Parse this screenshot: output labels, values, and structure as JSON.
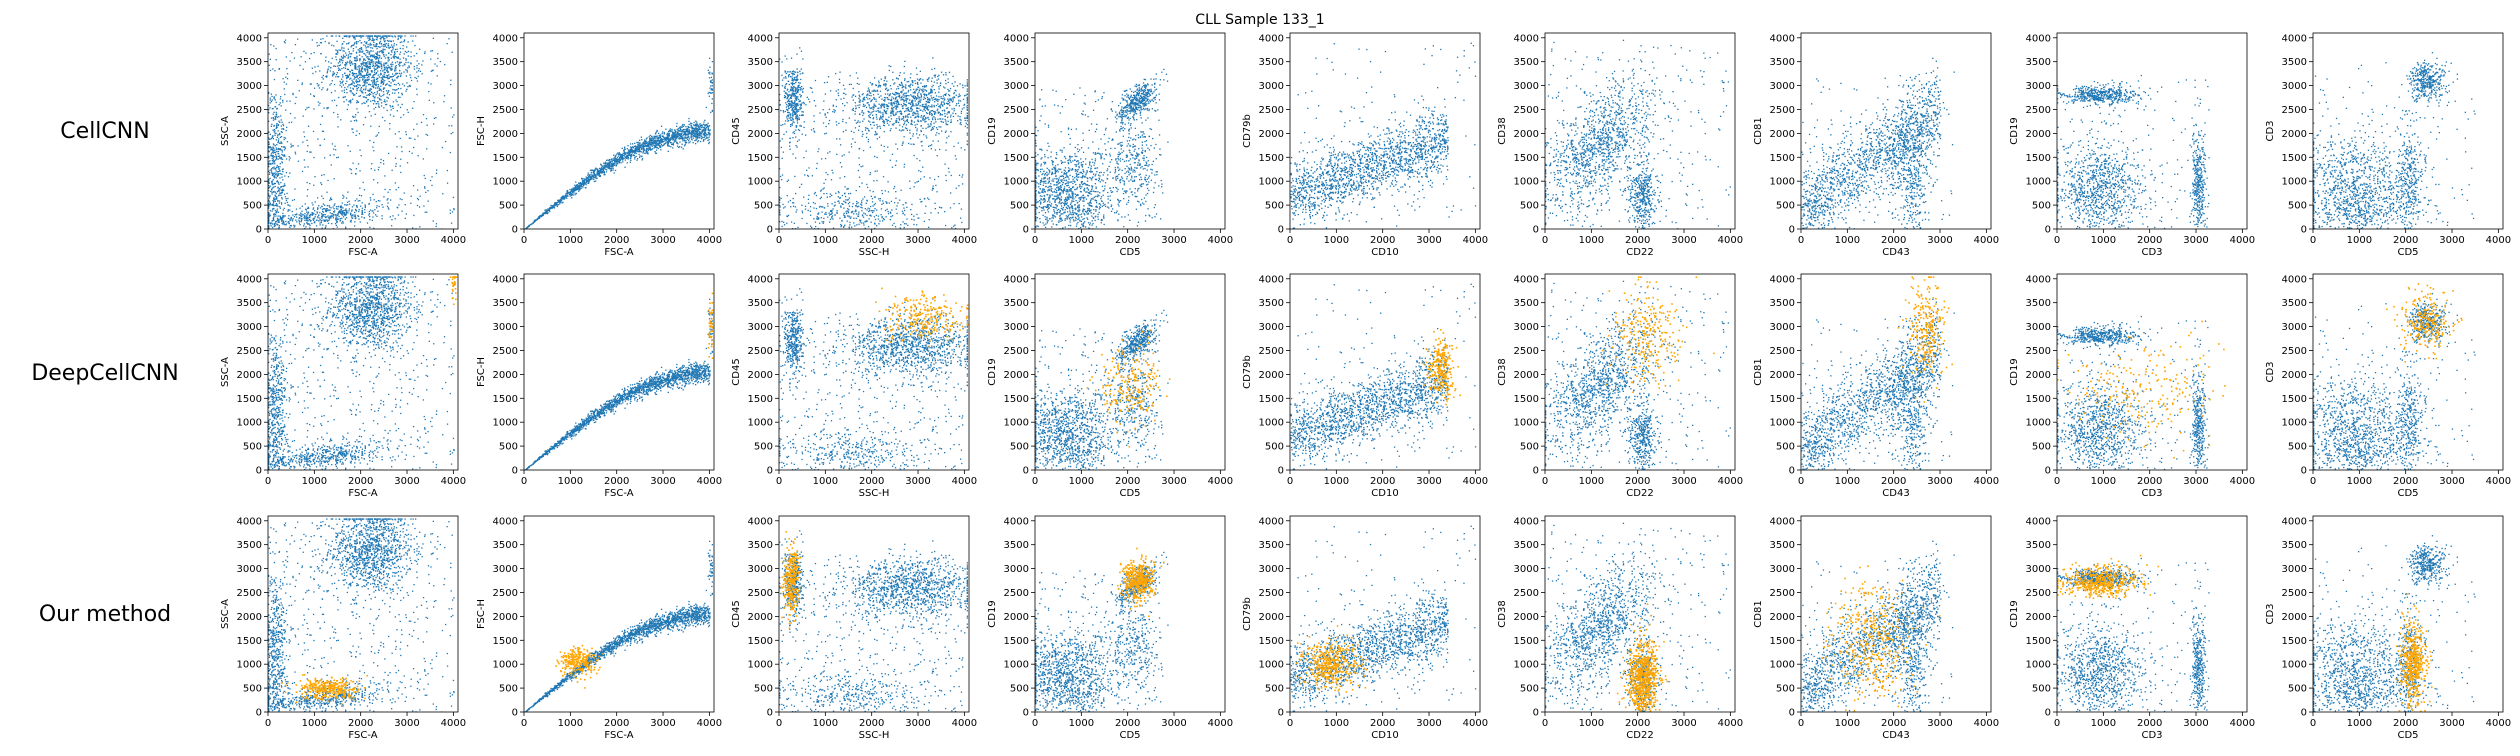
{
  "figure": {
    "title": "CLL Sample 133_1",
    "rows": [
      "CellCNN",
      "DeepCellCNN",
      "Our method"
    ]
  },
  "colors": {
    "population": "#1f77b4",
    "highlight": "#ffa500"
  },
  "chart_data": [
    {
      "type": "scatter",
      "row": "CellCNN",
      "xlabel": "FSC-A",
      "ylabel": "SSC-A",
      "xlim": [
        0,
        4100
      ],
      "ylim": [
        0,
        4100
      ],
      "xticks": [
        0,
        1000,
        2000,
        3000,
        4000
      ],
      "yticks": [
        0,
        500,
        1000,
        1500,
        2000,
        2500,
        3000,
        3500,
        4000
      ],
      "highlight": []
    },
    {
      "type": "scatter",
      "row": "CellCNN",
      "xlabel": "FSC-A",
      "ylabel": "FSC-H",
      "xlim": [
        0,
        4100
      ],
      "ylim": [
        0,
        4100
      ],
      "xticks": [
        0,
        1000,
        2000,
        3000,
        4000
      ],
      "yticks": [
        0,
        500,
        1000,
        1500,
        2000,
        2500,
        3000,
        3500,
        4000
      ],
      "highlight": []
    },
    {
      "type": "scatter",
      "row": "CellCNN",
      "xlabel": "SSC-H",
      "ylabel": "CD45",
      "xlim": [
        0,
        4100
      ],
      "ylim": [
        0,
        4100
      ],
      "xticks": [
        0,
        1000,
        2000,
        3000,
        4000
      ],
      "yticks": [
        0,
        500,
        1000,
        1500,
        2000,
        2500,
        3000,
        3500,
        4000
      ],
      "highlight": []
    },
    {
      "type": "scatter",
      "row": "CellCNN",
      "xlabel": "CD5",
      "ylabel": "CD19",
      "xlim": [
        0,
        4100
      ],
      "ylim": [
        0,
        4100
      ],
      "xticks": [
        0,
        1000,
        2000,
        3000,
        4000
      ],
      "yticks": [
        0,
        500,
        1000,
        1500,
        2000,
        2500,
        3000,
        3500,
        4000
      ],
      "highlight": []
    },
    {
      "type": "scatter",
      "row": "CellCNN",
      "xlabel": "CD10",
      "ylabel": "CD79b",
      "xlim": [
        0,
        4100
      ],
      "ylim": [
        0,
        4100
      ],
      "xticks": [
        0,
        1000,
        2000,
        3000,
        4000
      ],
      "yticks": [
        0,
        500,
        1000,
        1500,
        2000,
        2500,
        3000,
        3500,
        4000
      ],
      "highlight": []
    },
    {
      "type": "scatter",
      "row": "CellCNN",
      "xlabel": "CD22",
      "ylabel": "CD38",
      "xlim": [
        0,
        4100
      ],
      "ylim": [
        0,
        4100
      ],
      "xticks": [
        0,
        1000,
        2000,
        3000,
        4000
      ],
      "yticks": [
        0,
        500,
        1000,
        1500,
        2000,
        2500,
        3000,
        3500,
        4000
      ],
      "highlight": []
    },
    {
      "type": "scatter",
      "row": "CellCNN",
      "xlabel": "CD43",
      "ylabel": "CD81",
      "xlim": [
        0,
        4100
      ],
      "ylim": [
        0,
        4100
      ],
      "xticks": [
        0,
        1000,
        2000,
        3000,
        4000
      ],
      "yticks": [
        0,
        500,
        1000,
        1500,
        2000,
        2500,
        3000,
        3500,
        4000
      ],
      "highlight": []
    },
    {
      "type": "scatter",
      "row": "CellCNN",
      "xlabel": "CD3",
      "ylabel": "CD19",
      "xlim": [
        0,
        4100
      ],
      "ylim": [
        0,
        4100
      ],
      "xticks": [
        0,
        1000,
        2000,
        3000,
        4000
      ],
      "yticks": [
        0,
        500,
        1000,
        1500,
        2000,
        2500,
        3000,
        3500,
        4000
      ],
      "highlight": []
    },
    {
      "type": "scatter",
      "row": "CellCNN",
      "xlabel": "CD5",
      "ylabel": "CD3",
      "xlim": [
        0,
        4100
      ],
      "ylim": [
        0,
        4100
      ],
      "xticks": [
        0,
        1000,
        2000,
        3000,
        4000
      ],
      "yticks": [
        0,
        500,
        1000,
        1500,
        2000,
        2500,
        3000,
        3500,
        4000
      ],
      "highlight": []
    },
    {
      "type": "scatter",
      "row": "DeepCellCNN",
      "xlabel": "FSC-A",
      "ylabel": "SSC-A",
      "xlim": [
        0,
        4100
      ],
      "ylim": [
        0,
        4100
      ],
      "xticks": [
        0,
        1000,
        2000,
        3000,
        4000
      ],
      "yticks": [
        0,
        500,
        1000,
        1500,
        2000,
        2500,
        3000,
        3500,
        4000
      ],
      "highlight": [
        [
          4000,
          4000,
          30,
          200,
          40
        ]
      ]
    },
    {
      "type": "scatter",
      "row": "DeepCellCNN",
      "xlabel": "FSC-A",
      "ylabel": "FSC-H",
      "xlim": [
        0,
        4100
      ],
      "ylim": [
        0,
        4100
      ],
      "xticks": [
        0,
        1000,
        2000,
        3000,
        4000
      ],
      "yticks": [
        0,
        500,
        1000,
        1500,
        2000,
        2500,
        3000,
        3500,
        4000
      ],
      "highlight": [
        [
          4020,
          3000,
          30,
          300,
          40
        ]
      ]
    },
    {
      "type": "scatter",
      "row": "DeepCellCNN",
      "xlabel": "SSC-H",
      "ylabel": "CD45",
      "xlim": [
        0,
        4100
      ],
      "ylim": [
        0,
        4100
      ],
      "xticks": [
        0,
        1000,
        2000,
        3000,
        4000
      ],
      "yticks": [
        0,
        500,
        1000,
        1500,
        2000,
        2500,
        3000,
        3500,
        4000
      ],
      "highlight": [
        [
          3100,
          3200,
          420,
          230,
          260
        ]
      ]
    },
    {
      "type": "scatter",
      "row": "DeepCellCNN",
      "xlabel": "CD5",
      "ylabel": "CD19",
      "xlim": [
        0,
        4100
      ],
      "ylim": [
        0,
        4100
      ],
      "xticks": [
        0,
        1000,
        2000,
        3000,
        4000
      ],
      "yticks": [
        0,
        500,
        1000,
        1500,
        2000,
        2500,
        3000,
        3500,
        4000
      ],
      "highlight": [
        [
          2000,
          1800,
          350,
          450,
          220
        ]
      ]
    },
    {
      "type": "scatter",
      "row": "DeepCellCNN",
      "xlabel": "CD10",
      "ylabel": "CD79b",
      "xlim": [
        0,
        4100
      ],
      "ylim": [
        0,
        4100
      ],
      "xticks": [
        0,
        1000,
        2000,
        3000,
        4000
      ],
      "yticks": [
        0,
        500,
        1000,
        1500,
        2000,
        2500,
        3000,
        3500,
        4000
      ],
      "highlight": [
        [
          3250,
          2150,
          140,
          300,
          260
        ]
      ]
    },
    {
      "type": "scatter",
      "row": "DeepCellCNN",
      "xlabel": "CD22",
      "ylabel": "CD38",
      "xlim": [
        0,
        4100
      ],
      "ylim": [
        0,
        4100
      ],
      "xticks": [
        0,
        1000,
        2000,
        3000,
        4000
      ],
      "yticks": [
        0,
        500,
        1000,
        1500,
        2000,
        2500,
        3000,
        3500,
        4000
      ],
      "highlight": [
        [
          2150,
          2800,
          350,
          550,
          260
        ]
      ]
    },
    {
      "type": "scatter",
      "row": "DeepCellCNN",
      "xlabel": "CD43",
      "ylabel": "CD81",
      "xlim": [
        0,
        4100
      ],
      "ylim": [
        0,
        4100
      ],
      "xticks": [
        0,
        1000,
        2000,
        3000,
        4000
      ],
      "yticks": [
        0,
        500,
        1000,
        1500,
        2000,
        2500,
        3000,
        3500,
        4000
      ],
      "highlight": [
        [
          2700,
          3000,
          200,
          500,
          260
        ]
      ]
    },
    {
      "type": "scatter",
      "row": "DeepCellCNN",
      "xlabel": "CD3",
      "ylabel": "CD19",
      "xlim": [
        0,
        4100
      ],
      "ylim": [
        0,
        4100
      ],
      "xticks": [
        0,
        1000,
        2000,
        3000,
        4000
      ],
      "yticks": [
        0,
        500,
        1000,
        1500,
        2000,
        2500,
        3000,
        3500,
        4000
      ],
      "highlight": [
        [
          1700,
          1700,
          800,
          500,
          220
        ]
      ]
    },
    {
      "type": "scatter",
      "row": "DeepCellCNN",
      "xlabel": "CD5",
      "ylabel": "CD3",
      "xlim": [
        0,
        4100
      ],
      "ylim": [
        0,
        4100
      ],
      "xticks": [
        0,
        1000,
        2000,
        3000,
        4000
      ],
      "yticks": [
        0,
        500,
        1000,
        1500,
        2000,
        2500,
        3000,
        3500,
        4000
      ],
      "highlight": [
        [
          2400,
          3100,
          280,
          350,
          240
        ]
      ]
    },
    {
      "type": "scatter",
      "row": "Our method",
      "xlabel": "FSC-A",
      "ylabel": "SSC-A",
      "xlim": [
        0,
        4100
      ],
      "ylim": [
        0,
        4100
      ],
      "xticks": [
        0,
        1000,
        2000,
        3000,
        4000
      ],
      "yticks": [
        0,
        500,
        1000,
        1500,
        2000,
        2500,
        3000,
        3500,
        4000
      ],
      "highlight": [
        [
          1300,
          500,
          330,
          110,
          320
        ]
      ]
    },
    {
      "type": "scatter",
      "row": "Our method",
      "xlabel": "FSC-A",
      "ylabel": "FSC-H",
      "xlim": [
        0,
        4100
      ],
      "ylim": [
        0,
        4100
      ],
      "xticks": [
        0,
        1000,
        2000,
        3000,
        4000
      ],
      "yticks": [
        0,
        500,
        1000,
        1500,
        2000,
        2500,
        3000,
        3500,
        4000
      ],
      "highlight": [
        [
          1150,
          1050,
          200,
          150,
          260
        ]
      ]
    },
    {
      "type": "scatter",
      "row": "Our method",
      "xlabel": "SSC-H",
      "ylabel": "CD45",
      "xlim": [
        0,
        4100
      ],
      "ylim": [
        0,
        4100
      ],
      "xticks": [
        0,
        1000,
        2000,
        3000,
        4000
      ],
      "yticks": [
        0,
        500,
        1000,
        1500,
        2000,
        2500,
        3000,
        3500,
        4000
      ],
      "highlight": [
        [
          250,
          2750,
          80,
          350,
          300
        ]
      ]
    },
    {
      "type": "scatter",
      "row": "Our method",
      "xlabel": "CD5",
      "ylabel": "CD19",
      "xlim": [
        0,
        4100
      ],
      "ylim": [
        0,
        4100
      ],
      "xticks": [
        0,
        1000,
        2000,
        3000,
        4000
      ],
      "yticks": [
        0,
        500,
        1000,
        1500,
        2000,
        2500,
        3000,
        3500,
        4000
      ],
      "highlight": [
        [
          2200,
          2750,
          170,
          220,
          400
        ]
      ]
    },
    {
      "type": "scatter",
      "row": "Our method",
      "xlabel": "CD10",
      "ylabel": "CD79b",
      "xlim": [
        0,
        4100
      ],
      "ylim": [
        0,
        4100
      ],
      "xticks": [
        0,
        1000,
        2000,
        3000,
        4000
      ],
      "yticks": [
        0,
        500,
        1000,
        1500,
        2000,
        2500,
        3000,
        3500,
        4000
      ],
      "highlight": [
        [
          850,
          1000,
          300,
          250,
          400
        ]
      ]
    },
    {
      "type": "scatter",
      "row": "Our method",
      "xlabel": "CD22",
      "ylabel": "CD38",
      "xlim": [
        0,
        4100
      ],
      "ylim": [
        0,
        4100
      ],
      "xticks": [
        0,
        1000,
        2000,
        3000,
        4000
      ],
      "yticks": [
        0,
        500,
        1000,
        1500,
        2000,
        2500,
        3000,
        3500,
        4000
      ],
      "highlight": [
        [
          2100,
          700,
          170,
          420,
          700
        ]
      ]
    },
    {
      "type": "scatter",
      "row": "Our method",
      "xlabel": "CD43",
      "ylabel": "CD81",
      "xlim": [
        0,
        4100
      ],
      "ylim": [
        0,
        4100
      ],
      "xticks": [
        0,
        1000,
        2000,
        3000,
        4000
      ],
      "yticks": [
        0,
        500,
        1000,
        1500,
        2000,
        2500,
        3000,
        3500,
        4000
      ],
      "highlight": [
        [
          1500,
          1500,
          400,
          600,
          400
        ]
      ]
    },
    {
      "type": "scatter",
      "row": "Our method",
      "xlabel": "CD3",
      "ylabel": "CD19",
      "xlim": [
        0,
        4100
      ],
      "ylim": [
        0,
        4100
      ],
      "xticks": [
        0,
        1000,
        2000,
        3000,
        4000
      ],
      "yticks": [
        0,
        500,
        1000,
        1500,
        2000,
        2500,
        3000,
        3500,
        4000
      ],
      "highlight": [
        [
          900,
          2750,
          450,
          160,
          450
        ]
      ]
    },
    {
      "type": "scatter",
      "row": "Our method",
      "xlabel": "CD5",
      "ylabel": "CD3",
      "xlim": [
        0,
        4100
      ],
      "ylim": [
        0,
        4100
      ],
      "xticks": [
        0,
        1000,
        2000,
        3000,
        4000
      ],
      "yticks": [
        0,
        500,
        1000,
        1500,
        2000,
        2500,
        3000,
        3500,
        4000
      ],
      "highlight": [
        [
          2150,
          1000,
          140,
          450,
          450
        ]
      ]
    }
  ]
}
